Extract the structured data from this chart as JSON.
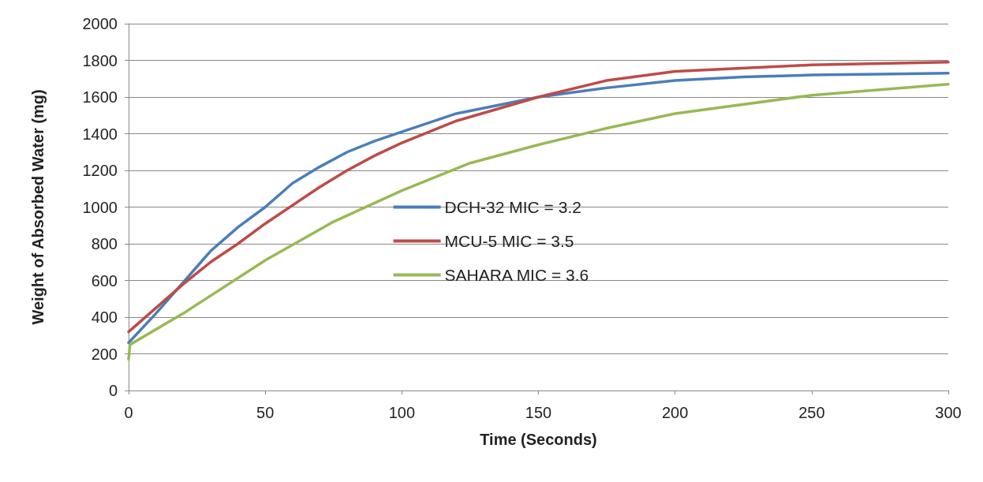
{
  "chart_data": {
    "type": "line",
    "xlabel": "Time (Seconds)",
    "ylabel": "Weight of Absorbed Water (mg)",
    "xlim": [
      0,
      300
    ],
    "xticks": [
      0,
      50,
      100,
      150,
      200,
      250,
      300
    ],
    "ylim": [
      0,
      2000
    ],
    "yticks": [
      0,
      200,
      400,
      600,
      800,
      1000,
      1200,
      1400,
      1600,
      1800,
      2000
    ],
    "grid": "y",
    "legend": "center",
    "marker": "none",
    "line_style": "solid",
    "series": [
      {
        "name": "DCH-32 MIC = 3.2",
        "color": "#4a7ebb",
        "x": [
          0,
          10,
          20,
          30,
          40,
          50,
          60,
          70,
          80,
          90,
          100,
          120,
          150,
          175,
          200,
          225,
          250,
          275,
          300
        ],
        "values": [
          260,
          420,
          590,
          760,
          890,
          1000,
          1130,
          1220,
          1300,
          1360,
          1410,
          1510,
          1600,
          1650,
          1690,
          1710,
          1720,
          1725,
          1730
        ]
      },
      {
        "name": "MCU-5 MIC = 3.5",
        "color": "#be4b48",
        "x": [
          0,
          10,
          20,
          30,
          40,
          50,
          60,
          70,
          80,
          90,
          100,
          120,
          150,
          175,
          200,
          250,
          300
        ],
        "values": [
          320,
          450,
          580,
          700,
          800,
          910,
          1010,
          1110,
          1200,
          1280,
          1350,
          1470,
          1600,
          1690,
          1740,
          1775,
          1790
        ]
      },
      {
        "name": "SAHARA MIC = 3.6",
        "color": "#98b954",
        "x": [
          0,
          0.5,
          20,
          50,
          75,
          100,
          125,
          150,
          175,
          200,
          250,
          300
        ],
        "values": [
          170,
          250,
          420,
          710,
          920,
          1090,
          1240,
          1340,
          1430,
          1510,
          1610,
          1670
        ]
      }
    ]
  }
}
